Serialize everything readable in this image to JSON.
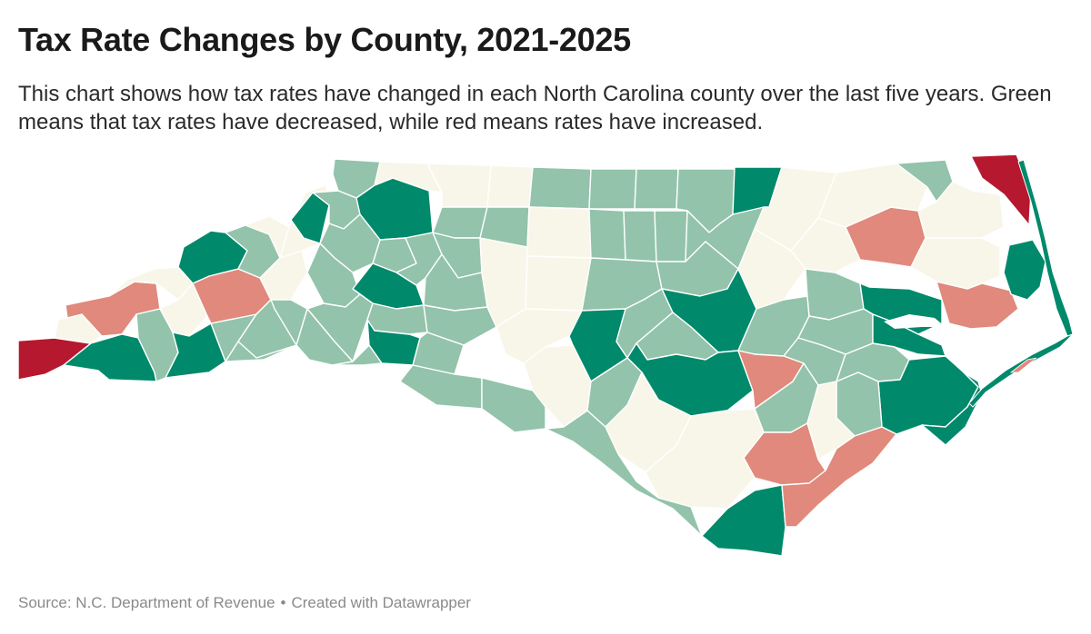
{
  "header": {
    "title": "Tax Rate Changes by County, 2021-2025",
    "subtitle": "This chart shows how tax rates have changed in each North Carolina county over the last five years. Green means that tax rates have decreased, while red means rates have increased."
  },
  "footer": {
    "source": "Source: N.C. Department of Revenue",
    "separator": "•",
    "credit": "Created with Datawrapper"
  },
  "colors": {
    "strong_increase": "#b5182f",
    "increase": "#e0897c",
    "no_change": "#f8f6e8",
    "decrease": "#93c3ab",
    "strong_decrease": "#00896b",
    "border": "#ffffff"
  },
  "map": {
    "region": "North Carolina",
    "category_order": [
      "strong_increase",
      "increase",
      "no_change",
      "decrease",
      "strong_decrease"
    ],
    "counties": [
      {
        "id": "c01",
        "category": "decrease"
      },
      {
        "id": "c02",
        "category": "decrease"
      },
      {
        "id": "c03",
        "category": "no_change"
      },
      {
        "id": "c04",
        "category": "no_change"
      },
      {
        "id": "c05",
        "category": "decrease"
      },
      {
        "id": "c06",
        "category": "decrease"
      },
      {
        "id": "c07",
        "category": "decrease"
      },
      {
        "id": "c08",
        "category": "decrease"
      },
      {
        "id": "c09",
        "category": "decrease"
      },
      {
        "id": "c10",
        "category": "strong_decrease"
      },
      {
        "id": "c11",
        "category": "decrease"
      },
      {
        "id": "c12",
        "category": "decrease"
      },
      {
        "id": "c13",
        "category": "strong_increase"
      },
      {
        "id": "c14",
        "category": "strong_decrease"
      },
      {
        "id": "c15",
        "category": "decrease"
      },
      {
        "id": "c16",
        "category": "no_change"
      },
      {
        "id": "c17",
        "category": "decrease"
      },
      {
        "id": "c18",
        "category": "strong_decrease"
      },
      {
        "id": "c19",
        "category": "decrease"
      },
      {
        "id": "c20",
        "category": "decrease"
      },
      {
        "id": "c21",
        "category": "decrease"
      },
      {
        "id": "c22",
        "category": "no_change"
      },
      {
        "id": "c23",
        "category": "no_change"
      },
      {
        "id": "c24",
        "category": "decrease"
      },
      {
        "id": "c25",
        "category": "decrease"
      },
      {
        "id": "c26",
        "category": "no_change"
      },
      {
        "id": "c27",
        "category": "decrease"
      },
      {
        "id": "c28",
        "category": "decrease"
      },
      {
        "id": "c29",
        "category": "decrease"
      },
      {
        "id": "c30",
        "category": "decrease"
      },
      {
        "id": "c31",
        "category": "no_change"
      },
      {
        "id": "c32",
        "category": "strong_decrease"
      },
      {
        "id": "c33",
        "category": "no_change"
      },
      {
        "id": "c34",
        "category": "no_change"
      },
      {
        "id": "c35",
        "category": "increase"
      },
      {
        "id": "c36",
        "category": "no_change"
      },
      {
        "id": "c37",
        "category": "decrease"
      },
      {
        "id": "c38",
        "category": "decrease"
      },
      {
        "id": "c39",
        "category": "strong_decrease"
      },
      {
        "id": "c40",
        "category": "decrease"
      },
      {
        "id": "c41",
        "category": "strong_decrease"
      },
      {
        "id": "c42",
        "category": "strong_decrease"
      },
      {
        "id": "c43",
        "category": "decrease"
      },
      {
        "id": "c44",
        "category": "decrease"
      },
      {
        "id": "c45",
        "category": "decrease"
      },
      {
        "id": "c46",
        "category": "decrease"
      },
      {
        "id": "c47",
        "category": "decrease"
      },
      {
        "id": "c48",
        "category": "no_change"
      },
      {
        "id": "c49",
        "category": "no_change"
      },
      {
        "id": "c50",
        "category": "decrease"
      },
      {
        "id": "c51",
        "category": "decrease"
      },
      {
        "id": "c52",
        "category": "increase"
      },
      {
        "id": "c53",
        "category": "strong_decrease"
      },
      {
        "id": "c54",
        "category": "decrease"
      },
      {
        "id": "c55",
        "category": "no_change"
      },
      {
        "id": "c56",
        "category": "decrease"
      },
      {
        "id": "c57",
        "category": "no_change"
      },
      {
        "id": "c58",
        "category": "strong_decrease"
      },
      {
        "id": "c59",
        "category": "decrease"
      },
      {
        "id": "c60",
        "category": "strong_decrease"
      },
      {
        "id": "c61",
        "category": "no_change"
      },
      {
        "id": "c62",
        "category": "no_change"
      },
      {
        "id": "c63",
        "category": "decrease"
      },
      {
        "id": "c64",
        "category": "decrease"
      },
      {
        "id": "c65",
        "category": "strong_decrease"
      },
      {
        "id": "c66",
        "category": "decrease"
      },
      {
        "id": "c67",
        "category": "decrease"
      },
      {
        "id": "c68",
        "category": "strong_decrease"
      },
      {
        "id": "c69",
        "category": "decrease"
      },
      {
        "id": "c70",
        "category": "decrease"
      },
      {
        "id": "c71",
        "category": "increase"
      },
      {
        "id": "c72",
        "category": "no_change"
      },
      {
        "id": "c73",
        "category": "decrease"
      },
      {
        "id": "c74",
        "category": "no_change"
      },
      {
        "id": "c75",
        "category": "strong_decrease"
      },
      {
        "id": "c76",
        "category": "increase"
      },
      {
        "id": "c77",
        "category": "decrease"
      },
      {
        "id": "c78",
        "category": "decrease"
      },
      {
        "id": "c79",
        "category": "decrease"
      },
      {
        "id": "c80",
        "category": "strong_decrease"
      },
      {
        "id": "c81",
        "category": "decrease"
      },
      {
        "id": "c82",
        "category": "no_change"
      },
      {
        "id": "c83",
        "category": "strong_decrease"
      },
      {
        "id": "c84",
        "category": "increase"
      },
      {
        "id": "c85",
        "category": "strong_decrease"
      },
      {
        "id": "c86",
        "category": "no_change"
      },
      {
        "id": "c87",
        "category": "increase"
      },
      {
        "id": "c88",
        "category": "no_change"
      },
      {
        "id": "c89",
        "category": "no_change"
      },
      {
        "id": "c90",
        "category": "strong_increase"
      },
      {
        "id": "c91",
        "category": "strong_decrease"
      }
    ]
  }
}
